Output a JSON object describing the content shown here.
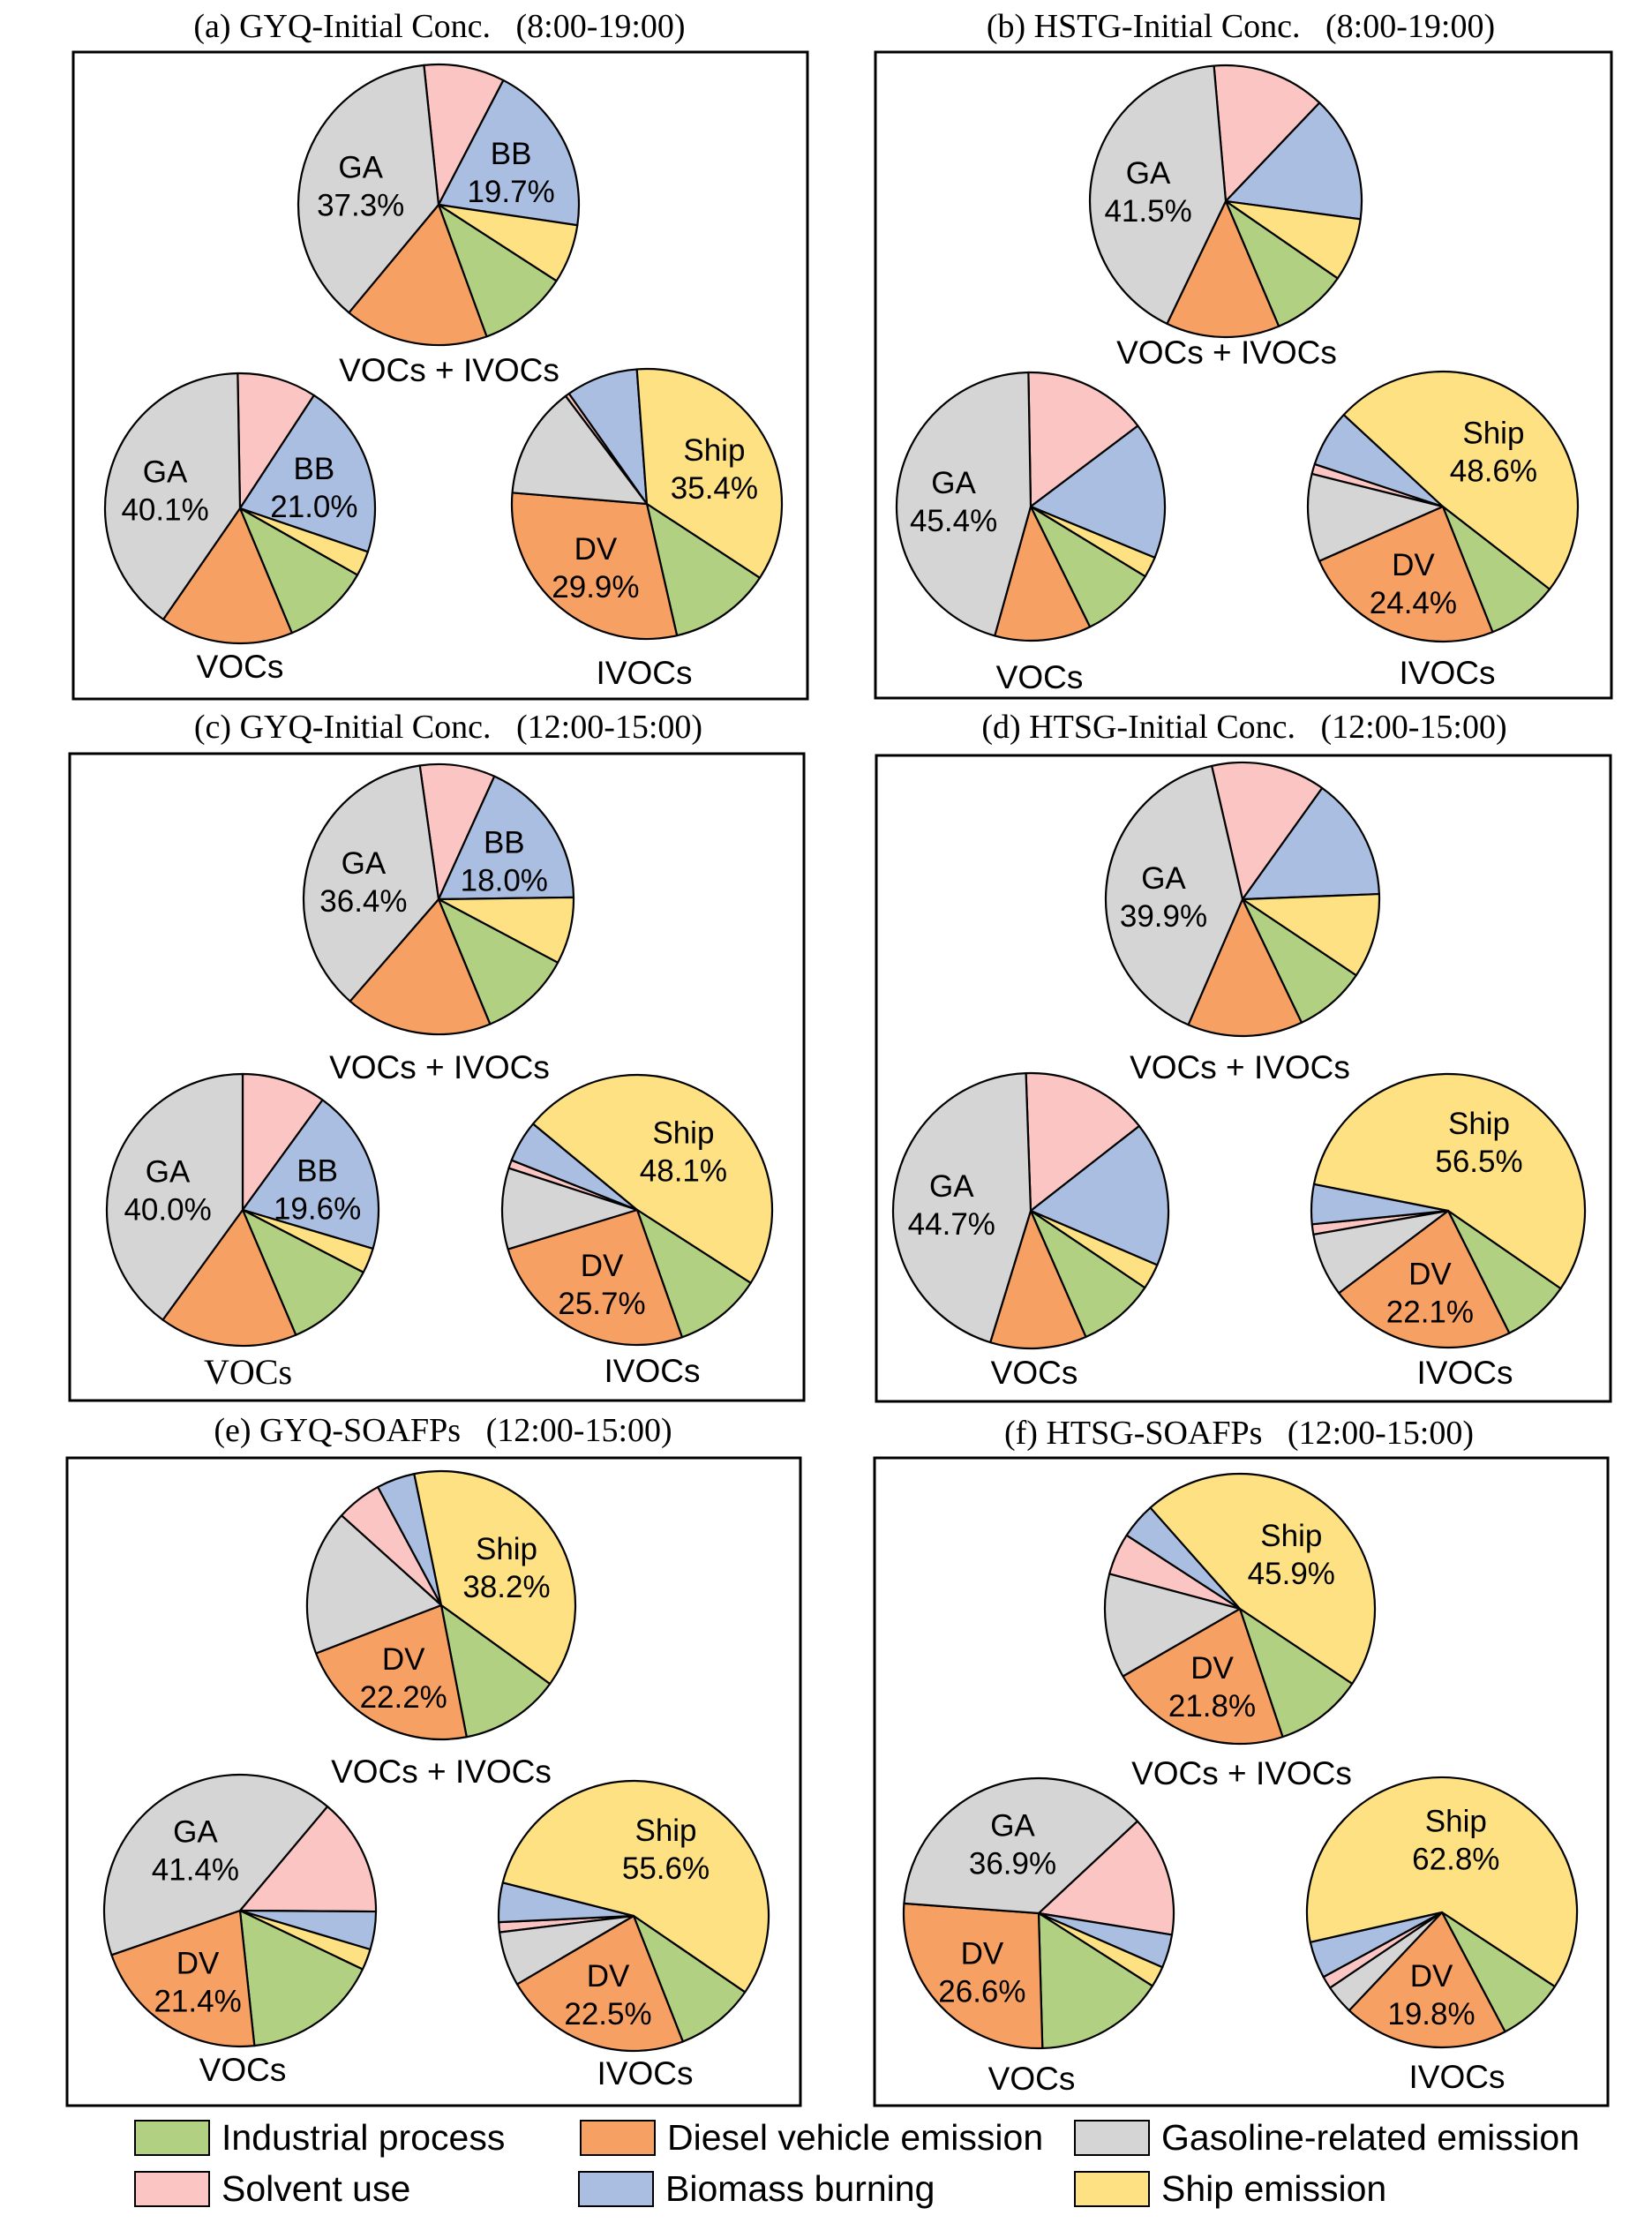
{
  "figure": {
    "legend": [
      {
        "key": "industrial",
        "label": "Industrial process",
        "color": "#b1d082"
      },
      {
        "key": "diesel",
        "label": "Diesel vehicle emission",
        "color": "#f6a063"
      },
      {
        "key": "gasoline",
        "label": "Gasoline-related emission",
        "color": "#d5d5d5"
      },
      {
        "key": "solvent",
        "label": "Solvent use",
        "color": "#fbc5c3"
      },
      {
        "key": "biomass",
        "label": "Biomass burning",
        "color": "#a9bee0"
      },
      {
        "key": "ship",
        "label": "Ship emission",
        "color": "#fde182"
      }
    ]
  },
  "chart_data": {
    "type": "pie",
    "unit": "%",
    "slice_order": [
      "solvent",
      "biomass",
      "ship",
      "industrial",
      "diesel",
      "gasoline"
    ],
    "abbreviations": {
      "biomass": "BB",
      "ship": "Ship",
      "diesel": "DV",
      "gasoline": "GA"
    },
    "panels": [
      {
        "id": "a",
        "title": "(a) GYQ-Initial Conc.   (8:00-19:00)",
        "pies": [
          {
            "caption": "VOCs + IVOCs",
            "values": {
              "solvent": 9.3,
              "biomass": 19.7,
              "ship": 6.8,
              "industrial": 10.3,
              "diesel": 16.6,
              "gasoline": 37.3
            },
            "labeled": [
              "biomass",
              "gasoline"
            ]
          },
          {
            "caption": "VOCs",
            "values": {
              "solvent": 9.5,
              "biomass": 21.0,
              "ship": 3.0,
              "industrial": 10.5,
              "diesel": 15.9,
              "gasoline": 40.1
            },
            "labeled": [
              "biomass",
              "gasoline"
            ]
          },
          {
            "caption": "IVOCs",
            "values": {
              "solvent": 0.5,
              "biomass": 8.6,
              "ship": 35.4,
              "industrial": 12.2,
              "diesel": 29.9,
              "gasoline": 13.4
            },
            "labeled": [
              "ship",
              "diesel"
            ]
          }
        ]
      },
      {
        "id": "b",
        "title": "(b) HSTG-Initial Conc.   (8:00-19:00)",
        "pies": [
          {
            "caption": "VOCs + IVOCs",
            "values": {
              "solvent": 13.5,
              "biomass": 15.0,
              "ship": 7.5,
              "industrial": 9.0,
              "diesel": 13.5,
              "gasoline": 41.5
            },
            "labeled": [
              "gasoline"
            ]
          },
          {
            "caption": "VOCs",
            "values": {
              "solvent": 15.0,
              "biomass": 16.5,
              "ship": 2.5,
              "industrial": 9.0,
              "diesel": 11.6,
              "gasoline": 45.4
            },
            "labeled": [
              "gasoline"
            ]
          },
          {
            "caption": "IVOCs",
            "values": {
              "solvent": 1.2,
              "biomass": 6.8,
              "ship": 48.6,
              "industrial": 8.5,
              "diesel": 24.4,
              "gasoline": 10.5
            },
            "labeled": [
              "ship",
              "diesel"
            ]
          }
        ]
      },
      {
        "id": "c",
        "title": "(c) GYQ-Initial Conc.   (12:00-15:00)",
        "pies": [
          {
            "caption": "VOCs + IVOCs",
            "values": {
              "solvent": 9.0,
              "biomass": 18.0,
              "ship": 8.0,
              "industrial": 11.0,
              "diesel": 17.6,
              "gasoline": 36.4
            },
            "labeled": [
              "biomass",
              "gasoline"
            ]
          },
          {
            "caption": "VOCs",
            "values": {
              "solvent": 10.0,
              "biomass": 19.6,
              "ship": 3.0,
              "industrial": 11.0,
              "diesel": 16.4,
              "gasoline": 40.0
            },
            "labeled": [
              "biomass",
              "gasoline"
            ]
          },
          {
            "caption": "IVOCs",
            "values": {
              "solvent": 1.0,
              "biomass": 5.0,
              "ship": 48.1,
              "industrial": 10.5,
              "diesel": 25.7,
              "gasoline": 9.7
            },
            "labeled": [
              "ship",
              "diesel"
            ]
          }
        ]
      },
      {
        "id": "d",
        "title": "(d) HTSG-Initial Conc.   (12:00-15:00)",
        "pies": [
          {
            "caption": "VOCs + IVOCs",
            "values": {
              "solvent": 13.5,
              "biomass": 14.5,
              "ship": 10.0,
              "industrial": 8.5,
              "diesel": 13.6,
              "gasoline": 39.9
            },
            "labeled": [
              "gasoline"
            ]
          },
          {
            "caption": "VOCs",
            "values": {
              "solvent": 15.0,
              "biomass": 17.0,
              "ship": 3.0,
              "industrial": 9.0,
              "diesel": 11.3,
              "gasoline": 44.7
            },
            "labeled": [
              "gasoline"
            ]
          },
          {
            "caption": "IVOCs",
            "values": {
              "solvent": 1.2,
              "biomass": 4.7,
              "ship": 56.5,
              "industrial": 8.0,
              "diesel": 22.1,
              "gasoline": 7.5
            },
            "labeled": [
              "ship",
              "diesel"
            ]
          }
        ]
      },
      {
        "id": "e",
        "title": "(e) GYQ-SOAFPs   (12:00-15:00)",
        "pies": [
          {
            "caption": "VOCs + IVOCs",
            "values": {
              "solvent": 5.5,
              "biomass": 4.6,
              "ship": 38.2,
              "industrial": 12.0,
              "diesel": 22.2,
              "gasoline": 17.5
            },
            "labeled": [
              "ship",
              "diesel"
            ]
          },
          {
            "caption": "VOCs",
            "values": {
              "solvent": 14.0,
              "biomass": 4.5,
              "ship": 2.5,
              "industrial": 16.2,
              "diesel": 21.4,
              "gasoline": 41.4
            },
            "labeled": [
              "gasoline",
              "diesel"
            ]
          },
          {
            "caption": "IVOCs",
            "values": {
              "solvent": 1.2,
              "biomass": 4.7,
              "ship": 55.6,
              "industrial": 9.5,
              "diesel": 22.5,
              "gasoline": 6.5
            },
            "labeled": [
              "ship",
              "diesel"
            ]
          }
        ]
      },
      {
        "id": "f",
        "title": "(f) HTSG-SOAFPs   (12:00-15:00)",
        "pies": [
          {
            "caption": "VOCs + IVOCs",
            "values": {
              "solvent": 5.0,
              "biomass": 4.3,
              "ship": 45.9,
              "industrial": 10.5,
              "diesel": 21.8,
              "gasoline": 12.5
            },
            "labeled": [
              "ship",
              "diesel"
            ]
          },
          {
            "caption": "VOCs",
            "values": {
              "solvent": 14.5,
              "biomass": 4.0,
              "ship": 2.5,
              "industrial": 15.5,
              "diesel": 26.6,
              "gasoline": 36.9
            },
            "labeled": [
              "gasoline",
              "diesel"
            ]
          },
          {
            "caption": "IVOCs",
            "values": {
              "solvent": 1.5,
              "biomass": 4.4,
              "ship": 62.8,
              "industrial": 8.0,
              "diesel": 19.8,
              "gasoline": 3.5
            },
            "labeled": [
              "ship",
              "diesel"
            ]
          }
        ]
      }
    ],
    "legend_position": "bottom"
  }
}
